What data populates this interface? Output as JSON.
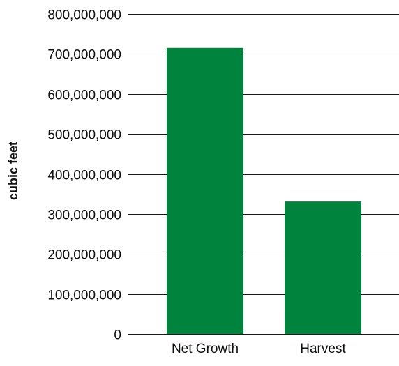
{
  "chart_data": {
    "type": "bar",
    "title": "",
    "xlabel": "",
    "ylabel": "cubic feet",
    "categories": [
      "Net Growth",
      "Harvest"
    ],
    "values": [
      715000000,
      331000000
    ],
    "ylim": [
      0,
      800000000
    ],
    "yticks": [
      0,
      100000000,
      200000000,
      300000000,
      400000000,
      500000000,
      600000000,
      700000000,
      800000000
    ],
    "ytick_labels": [
      "0",
      "100,000,000",
      "200,000,000",
      "300,000,000",
      "400,000,000",
      "500,000,000",
      "600,000,000",
      "700,000,000",
      "800,000,000"
    ],
    "bar_color": "#00843D",
    "grid": true
  }
}
